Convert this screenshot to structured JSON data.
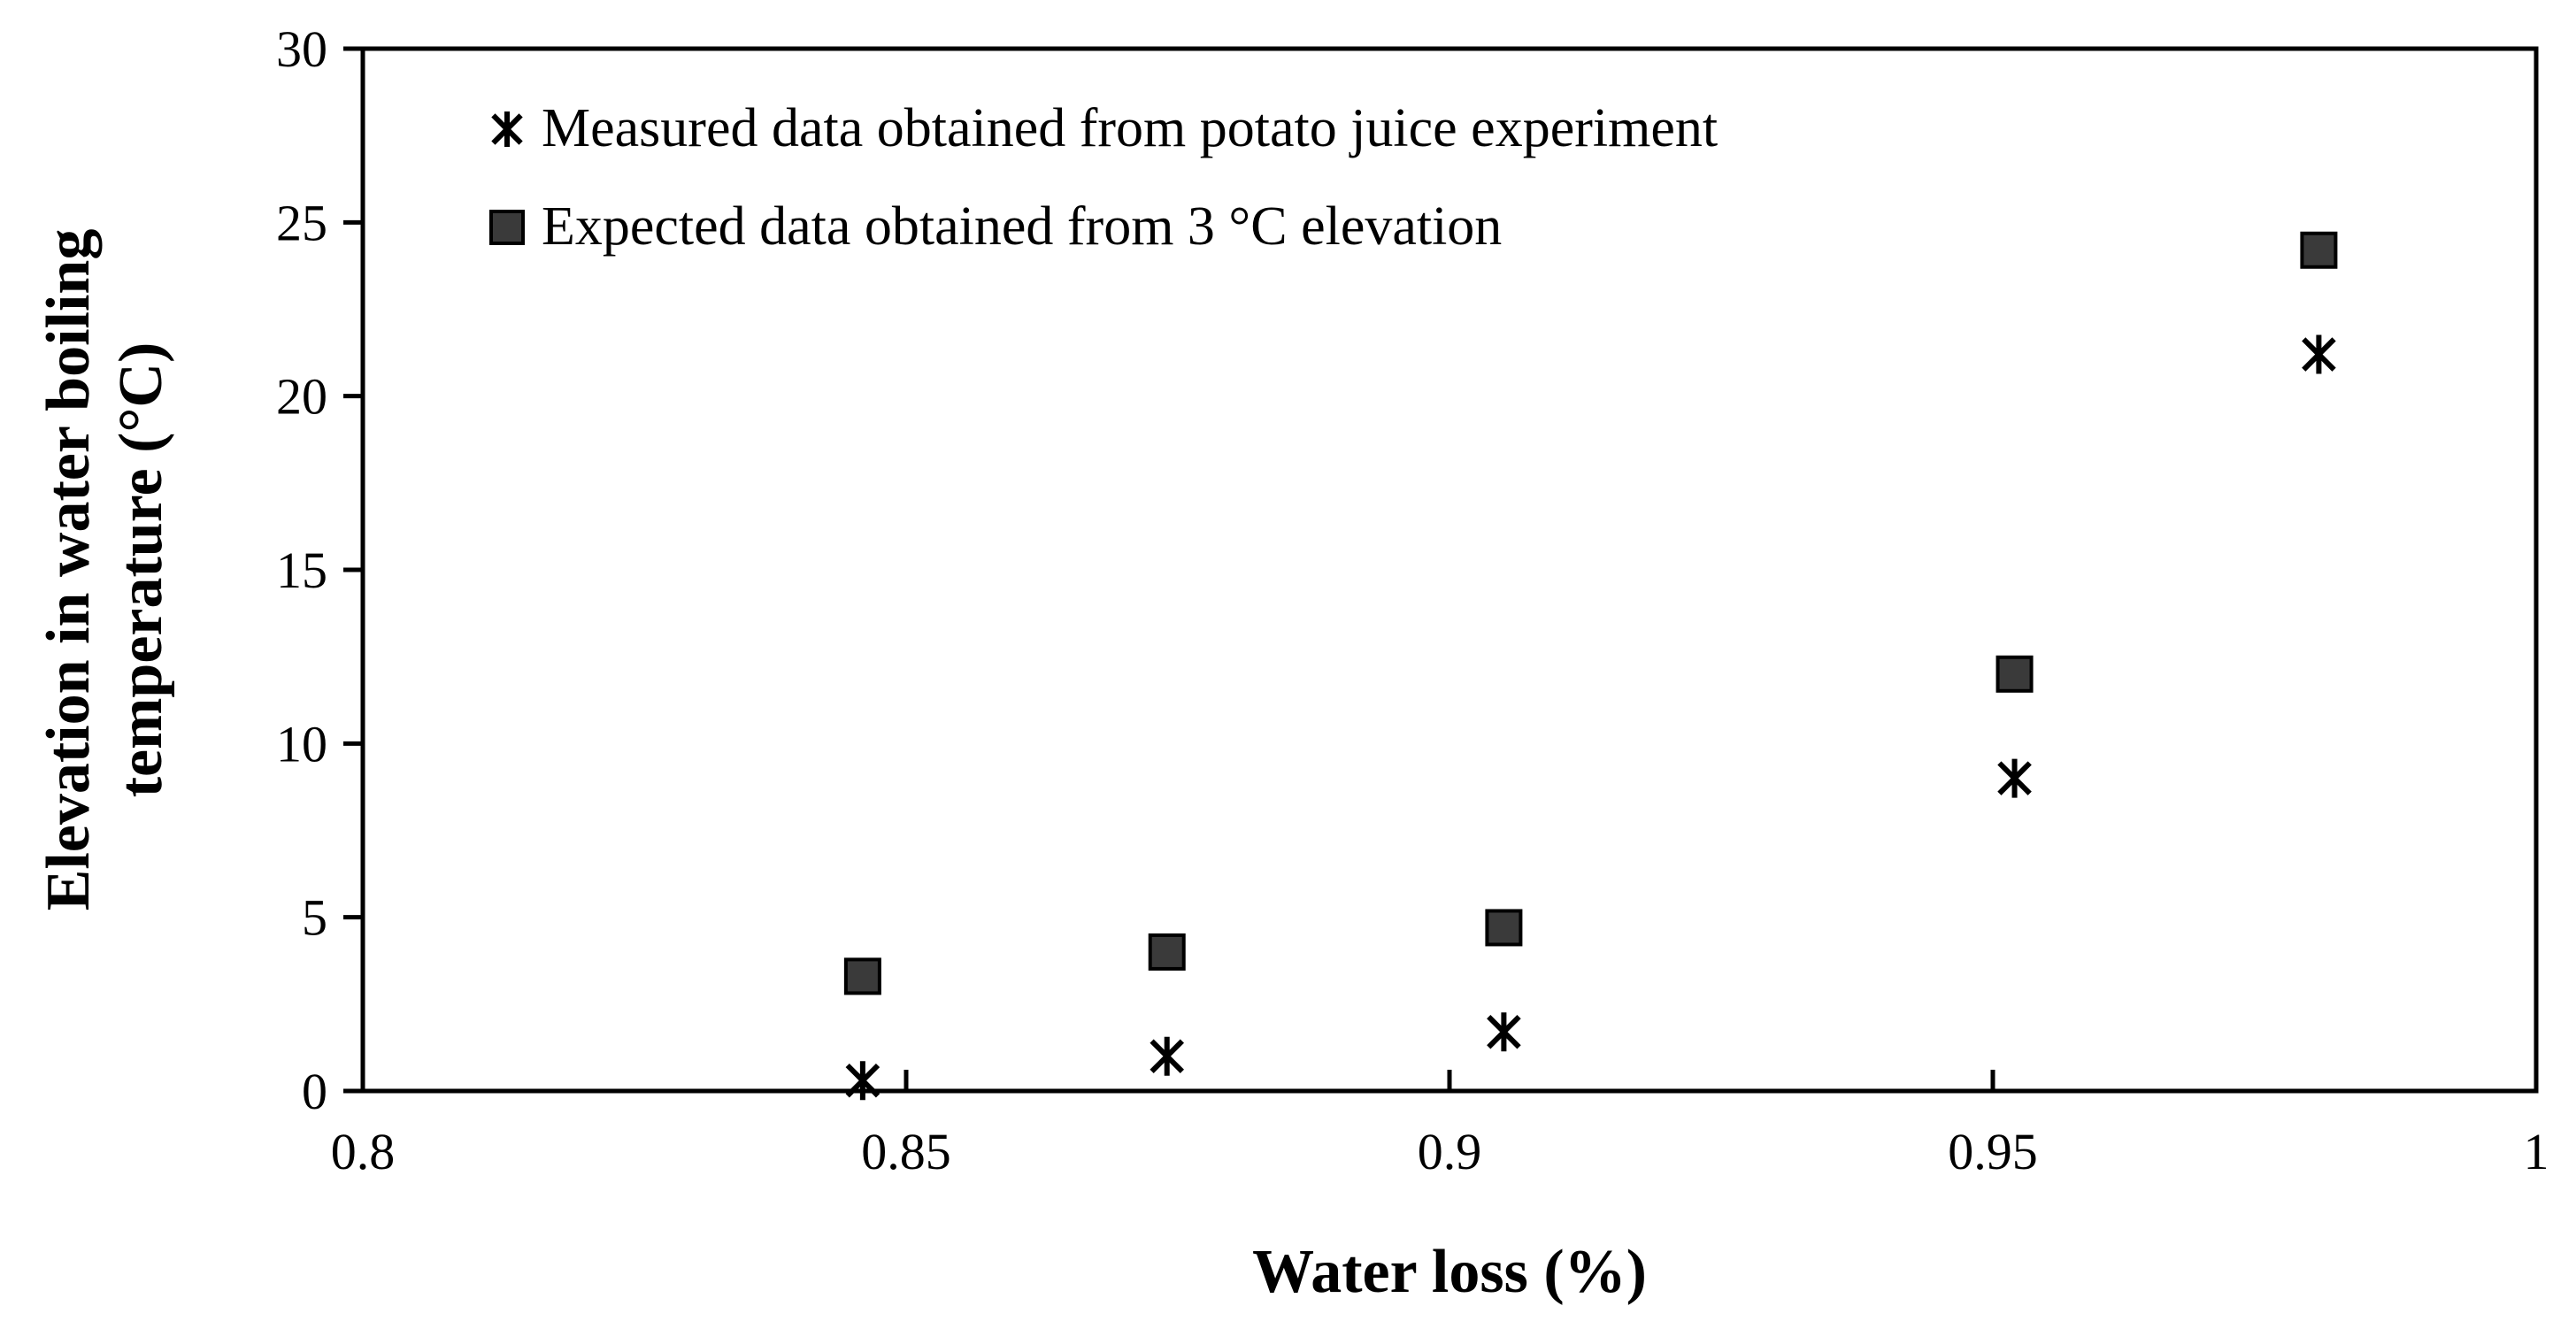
{
  "chart_data": {
    "type": "scatter",
    "title": "",
    "xlabel": "Water loss (%)",
    "ylabel_lines": [
      "Elevation in water boiling",
      "temperature (°C)"
    ],
    "xlim": [
      0.8,
      1.0
    ],
    "ylim": [
      0,
      30
    ],
    "xticks": [
      0.8,
      0.85,
      0.9,
      0.95,
      1.0
    ],
    "xtick_labels": [
      "0.8",
      "0.85",
      "0.9",
      "0.95",
      "1"
    ],
    "yticks": [
      0,
      5,
      10,
      15,
      20,
      25,
      30
    ],
    "ytick_labels": [
      "0",
      "5",
      "10",
      "15",
      "20",
      "25",
      "30"
    ],
    "grid": false,
    "legend_position": "top-left",
    "series": [
      {
        "name": "Measured data obtained from potato juice experiment",
        "marker": "asterisk",
        "color": "#000000",
        "x": [
          0.846,
          0.874,
          0.905,
          0.952,
          0.98
        ],
        "y": [
          0.3,
          1.0,
          1.7,
          9.0,
          21.2
        ]
      },
      {
        "name": "Expected data obtained from 3 °C elevation",
        "marker": "square",
        "color": "#3a3a3a",
        "x": [
          0.846,
          0.874,
          0.905,
          0.952,
          0.98
        ],
        "y": [
          3.3,
          4.0,
          4.7,
          12.0,
          24.2
        ]
      }
    ]
  }
}
